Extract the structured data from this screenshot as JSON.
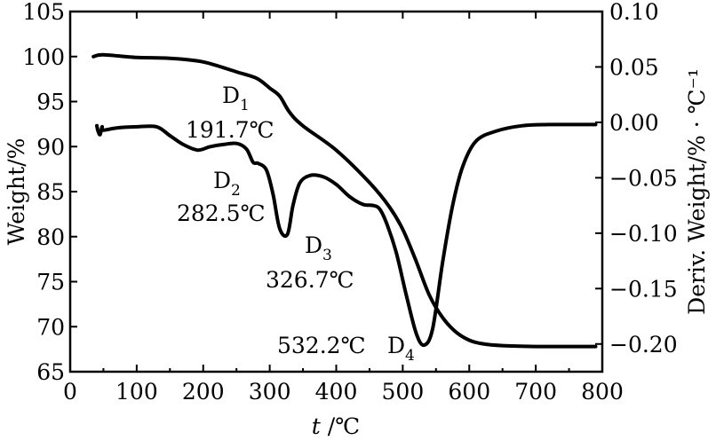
{
  "chart_data": {
    "type": "line",
    "xlabel": {
      "var": "t",
      "unit": " /℃"
    },
    "ylabel_left": "Weight/%",
    "ylabel_right": "Deriv. Weight/% · ℃⁻¹",
    "xlim": [
      0,
      800
    ],
    "ylim_left": [
      65,
      105
    ],
    "ylim_right": [
      -0.225,
      0.1
    ],
    "x_ticks": [
      0,
      100,
      200,
      300,
      400,
      500,
      600,
      700,
      800
    ],
    "y_left_ticks": [
      65,
      70,
      75,
      80,
      85,
      90,
      95,
      100,
      105
    ],
    "y_right_ticks": [
      {
        "value": 0.1,
        "label": "0.10"
      },
      {
        "value": 0.05,
        "label": "0.05"
      },
      {
        "value": 0.0,
        "label": "0.00"
      },
      {
        "value": -0.05,
        "label": "−0.05"
      },
      {
        "value": -0.1,
        "label": "−0.10"
      },
      {
        "value": -0.15,
        "label": "−0.15"
      },
      {
        "value": -0.2,
        "label": "−0.20"
      }
    ],
    "grid": false,
    "series": [
      {
        "axis": "left",
        "x": [
          35,
          50,
          100,
          150,
          200,
          250,
          280,
          300,
          315,
          330,
          350,
          400,
          450,
          480,
          500,
          520,
          540,
          560,
          580,
          600,
          620,
          650,
          700,
          750,
          790
        ],
        "y": [
          100,
          100.2,
          99.9,
          99.8,
          99.4,
          98.3,
          97.6,
          96.5,
          95.6,
          93.8,
          92.3,
          89.6,
          86.0,
          83.3,
          80.8,
          77.3,
          73.5,
          71.0,
          69.4,
          68.5,
          68.1,
          67.9,
          67.8,
          67.8,
          67.8
        ]
      },
      {
        "axis": "right",
        "x": [
          40,
          42,
          45,
          48,
          50,
          70,
          100,
          130,
          150,
          170,
          191.7,
          210,
          230,
          250,
          265,
          275,
          282.5,
          295,
          305,
          315,
          326.7,
          335,
          345,
          360,
          380,
          400,
          420,
          440,
          455,
          465,
          475,
          490,
          505,
          520,
          532.2,
          545,
          560,
          575,
          590,
          610,
          640,
          680,
          720,
          760,
          790
        ],
        "y": [
          -0.003,
          -0.008,
          -0.011,
          -0.004,
          -0.007,
          -0.005,
          -0.004,
          -0.004,
          -0.012,
          -0.02,
          -0.025,
          -0.022,
          -0.02,
          -0.019,
          -0.024,
          -0.036,
          -0.037,
          -0.043,
          -0.065,
          -0.096,
          -0.101,
          -0.075,
          -0.055,
          -0.048,
          -0.049,
          -0.056,
          -0.067,
          -0.074,
          -0.075,
          -0.078,
          -0.09,
          -0.117,
          -0.155,
          -0.19,
          -0.201,
          -0.186,
          -0.126,
          -0.075,
          -0.04,
          -0.017,
          -0.008,
          -0.003,
          -0.002,
          -0.002,
          -0.002
        ]
      }
    ],
    "annotations": [
      {
        "label": "D",
        "sub": "1",
        "temp": "191.7℃"
      },
      {
        "label": "D",
        "sub": "2",
        "temp": "282.5℃"
      },
      {
        "label": "D",
        "sub": "3",
        "temp": "326.7℃"
      },
      {
        "label": "D",
        "sub": "4",
        "temp": "532.2℃"
      }
    ]
  }
}
